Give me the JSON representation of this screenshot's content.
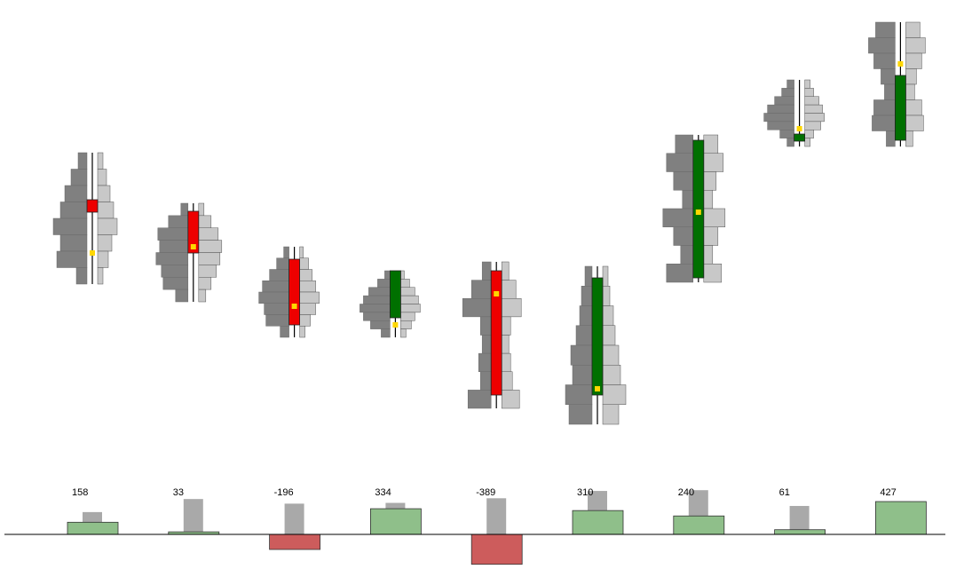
{
  "chart_data": {
    "type": "footprint",
    "up_color": "#007000",
    "down_color": "#ee0000",
    "poc_color": "#ffd700",
    "candles": {
      "open": [
        425,
        412,
        358,
        292,
        345,
        205,
        337,
        491,
        492
      ],
      "high": [
        478,
        421,
        372,
        345,
        355,
        350,
        498,
        560,
        625
      ],
      "low": [
        330,
        310,
        270,
        270,
        190,
        172,
        332,
        485,
        485
      ],
      "close": [
        411,
        365,
        284,
        345,
        205,
        337,
        492,
        499,
        565
      ],
      "poc": [
        365,
        372,
        305,
        284,
        319,
        212,
        411,
        505,
        578
      ],
      "bid_volume": [
        [
          10,
          18,
          25,
          30,
          38,
          30,
          34,
          12
        ],
        [
          8,
          22,
          34,
          32,
          36,
          30,
          28,
          14
        ],
        [
          6,
          14,
          22,
          30,
          34,
          28,
          26,
          10
        ],
        [
          6,
          14,
          24,
          30,
          34,
          30,
          22,
          10
        ],
        [
          10,
          22,
          32,
          12,
          10,
          14,
          12,
          26
        ],
        [
          8,
          12,
          14,
          18,
          24,
          22,
          30,
          26
        ],
        [
          20,
          30,
          22,
          12,
          34,
          22,
          14,
          30
        ],
        [
          8,
          14,
          22,
          30,
          34,
          30,
          16,
          8
        ],
        [
          22,
          30,
          24,
          16,
          12,
          24,
          26,
          10
        ]
      ],
      "ask_volume": [
        [
          6,
          10,
          14,
          18,
          22,
          16,
          12,
          6
        ],
        [
          6,
          14,
          22,
          26,
          24,
          20,
          14,
          8
        ],
        [
          4,
          10,
          14,
          18,
          22,
          18,
          12,
          6
        ],
        [
          4,
          10,
          16,
          20,
          22,
          16,
          12,
          6
        ],
        [
          8,
          16,
          22,
          10,
          8,
          10,
          12,
          20
        ],
        [
          6,
          8,
          12,
          14,
          18,
          20,
          26,
          18
        ],
        [
          16,
          22,
          14,
          10,
          24,
          16,
          10,
          20
        ],
        [
          6,
          10,
          16,
          20,
          22,
          18,
          10,
          6
        ],
        [
          16,
          22,
          18,
          12,
          10,
          18,
          20,
          8
        ]
      ]
    },
    "delta": {
      "values": [
        158,
        33,
        -196,
        334,
        -389,
        310,
        240,
        61,
        427
      ],
      "volume": [
        290,
        460,
        400,
        410,
        470,
        565,
        575,
        370,
        430
      ],
      "positive_color": "#8fbf8a",
      "negative_color": "#cd5c5c",
      "volume_color": "#a9a9a9"
    }
  }
}
